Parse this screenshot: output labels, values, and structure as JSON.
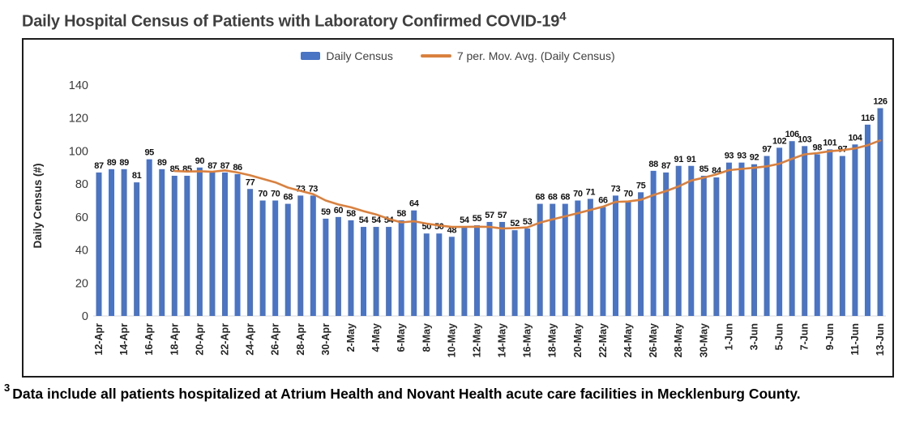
{
  "title": {
    "text": "Daily Hospital Census of Patients with Laboratory Confirmed COVID-19",
    "superscript": "4"
  },
  "legend": {
    "series1": "Daily Census",
    "series2": "7 per. Mov. Avg. (Daily Census)"
  },
  "footnote": {
    "superscript": "3",
    "text": "Data include all patients hospitalized at Atrium Health and Novant Health acute care facilities in Mecklenburg County."
  },
  "chart_data": {
    "type": "bar",
    "title": "Daily Hospital Census of Patients with Laboratory Confirmed COVID-19",
    "ylabel": "Daily Census (#)",
    "xlabel": "",
    "ylim": [
      0,
      140
    ],
    "yticks": [
      0,
      20,
      40,
      60,
      80,
      100,
      120,
      140
    ],
    "grid": false,
    "legend_position": "top-center",
    "tick_label_every": 2,
    "categories": [
      "12-Apr",
      "13-Apr",
      "14-Apr",
      "15-Apr",
      "16-Apr",
      "17-Apr",
      "18-Apr",
      "19-Apr",
      "20-Apr",
      "21-Apr",
      "22-Apr",
      "23-Apr",
      "24-Apr",
      "25-Apr",
      "26-Apr",
      "27-Apr",
      "28-Apr",
      "29-Apr",
      "30-Apr",
      "1-May",
      "2-May",
      "3-May",
      "4-May",
      "5-May",
      "6-May",
      "7-May",
      "8-May",
      "9-May",
      "10-May",
      "11-May",
      "12-May",
      "13-May",
      "14-May",
      "15-May",
      "16-May",
      "17-May",
      "18-May",
      "19-May",
      "20-May",
      "21-May",
      "22-May",
      "23-May",
      "24-May",
      "25-May",
      "26-May",
      "27-May",
      "28-May",
      "29-May",
      "30-May",
      "31-May",
      "1-Jun",
      "2-Jun",
      "3-Jun",
      "4-Jun",
      "5-Jun",
      "6-Jun",
      "7-Jun",
      "8-Jun",
      "9-Jun",
      "10-Jun",
      "11-Jun",
      "12-Jun",
      "13-Jun"
    ],
    "series": [
      {
        "name": "Daily Census",
        "type": "bar",
        "color": "#4A74C4",
        "values": [
          87,
          89,
          89,
          81,
          95,
          89,
          85,
          85,
          90,
          87,
          87,
          86,
          77,
          70,
          70,
          68,
          73,
          73,
          59,
          60,
          58,
          54,
          54,
          54,
          58,
          64,
          50,
          50,
          48,
          54,
          55,
          57,
          57,
          52,
          53,
          68,
          68,
          68,
          70,
          71,
          66,
          73,
          70,
          75,
          88,
          87,
          91,
          91,
          85,
          84,
          93,
          93,
          92,
          97,
          102,
          106,
          103,
          98,
          101,
          97,
          104,
          116,
          126
        ]
      },
      {
        "name": "7 per. Mov. Avg. (Daily Census)",
        "type": "line",
        "color": "#D9813E",
        "derived": "trailing 7-point moving average of Daily Census"
      }
    ]
  }
}
